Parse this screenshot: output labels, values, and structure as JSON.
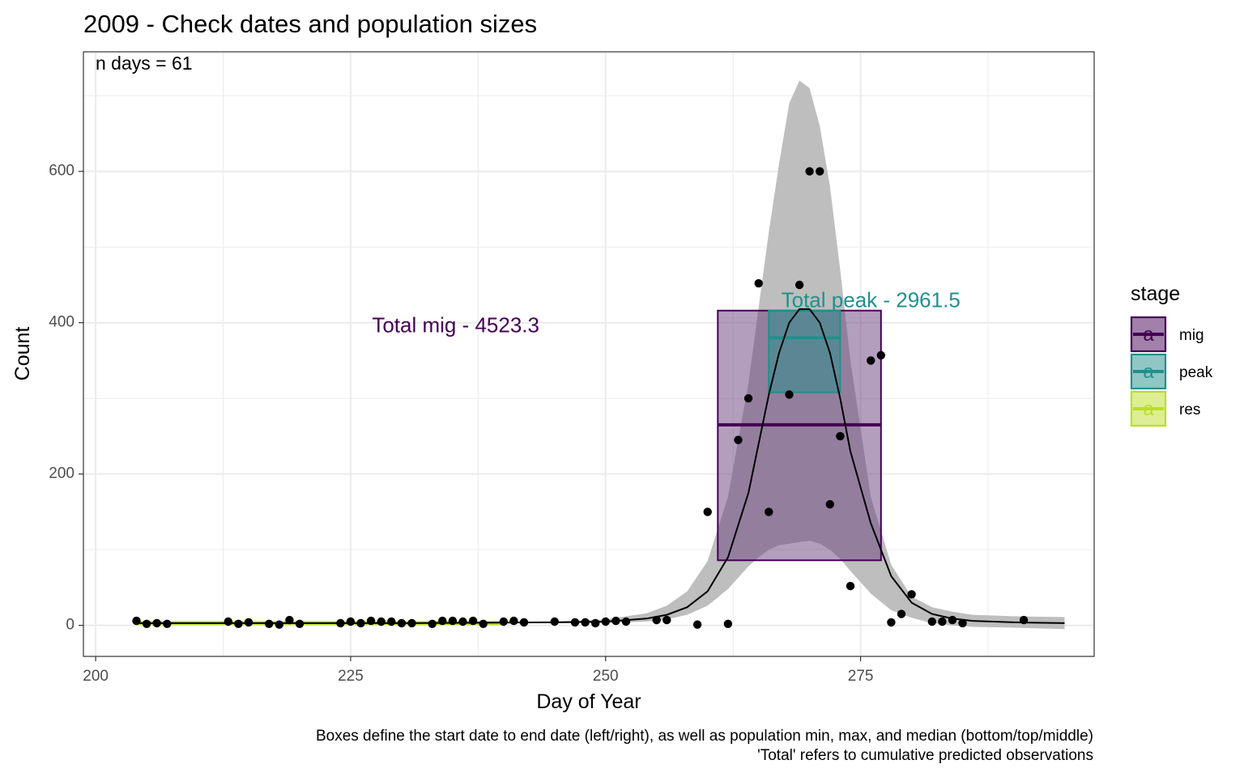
{
  "chart_data": {
    "type": "scatter",
    "title": "2009 - Check dates and population sizes",
    "xlabel": "Day of Year",
    "ylabel": "Count",
    "xlim": [
      198.8,
      297.9
    ],
    "ylim": [
      -41,
      758
    ],
    "x_ticks": [
      200,
      225,
      250,
      275
    ],
    "y_ticks": [
      0,
      200,
      400,
      600
    ],
    "x_minor": [
      212.5,
      237.5,
      262.5,
      287.5
    ],
    "y_minor": [
      100,
      300,
      500,
      700
    ],
    "grid": true,
    "annotation_top_left": "n days = 61",
    "caption_lines": [
      "Boxes define the start date to end date (left/right), as well as population min, max, and median (bottom/top/middle)",
      "'Total' refers to cumulative predicted observations"
    ],
    "legend": {
      "title": "stage",
      "position": "right",
      "entries": [
        {
          "key": "mig",
          "label": "mig",
          "color": "#440154"
        },
        {
          "key": "peak",
          "label": "peak",
          "color": "#21908C"
        },
        {
          "key": "res",
          "label": "res",
          "color": "#BADE28"
        }
      ],
      "glyph_letter": "a"
    },
    "boxes": [
      {
        "stage": "mig",
        "x_start": 261,
        "x_end": 277,
        "y_min": 86,
        "y_max": 416,
        "y_median": 265,
        "color": "#440154",
        "fill": "#6A3E7D",
        "fill_opacity": 0.5
      },
      {
        "stage": "peak",
        "x_start": 266,
        "x_end": 273,
        "y_min": 308,
        "y_max": 416,
        "y_median": 380,
        "color": "#21908C",
        "fill": "#21908C",
        "fill_opacity": 0.5
      }
    ],
    "resident_segment": {
      "stage": "res",
      "x_start": 204,
      "x_end": 240,
      "y": 3,
      "color": "#BADE28"
    },
    "labels": [
      {
        "text": "Total mig - 4523.3",
        "x": 235.3,
        "y": 395,
        "color": "#440154"
      },
      {
        "text": "Total peak - 2961.5",
        "x": 276.0,
        "y": 428,
        "color": "#21908C"
      }
    ],
    "fit_curve": {
      "x": [
        204,
        230,
        245,
        250,
        254,
        256,
        258,
        260,
        262,
        264,
        265,
        266,
        267,
        268,
        269,
        270,
        271,
        272,
        273,
        274,
        276,
        278,
        280,
        282,
        284,
        286,
        290,
        295
      ],
      "y": [
        3,
        3,
        4,
        5,
        9,
        14,
        24,
        45,
        90,
        175,
        240,
        305,
        360,
        400,
        418,
        418,
        400,
        360,
        300,
        230,
        135,
        65,
        30,
        15,
        9,
        6,
        4,
        3
      ],
      "lower": [
        3,
        3,
        3,
        3,
        5,
        8,
        14,
        26,
        48,
        78,
        90,
        100,
        106,
        108,
        110,
        112,
        108,
        100,
        88,
        72,
        42,
        20,
        10,
        3,
        0,
        -2,
        -3,
        -5
      ],
      "upper": [
        3,
        3,
        5,
        8,
        16,
        26,
        45,
        85,
        170,
        320,
        420,
        520,
        610,
        690,
        720,
        710,
        660,
        580,
        470,
        350,
        170,
        80,
        38,
        24,
        18,
        14,
        12,
        11
      ]
    },
    "points": [
      [
        204,
        6
      ],
      [
        205,
        2
      ],
      [
        206,
        3
      ],
      [
        207,
        2
      ],
      [
        213,
        5
      ],
      [
        214,
        2
      ],
      [
        215,
        4
      ],
      [
        217,
        2
      ],
      [
        218,
        1
      ],
      [
        219,
        7
      ],
      [
        220,
        2
      ],
      [
        224,
        3
      ],
      [
        225,
        5
      ],
      [
        226,
        3
      ],
      [
        227,
        6
      ],
      [
        228,
        5
      ],
      [
        229,
        5
      ],
      [
        230,
        3
      ],
      [
        231,
        3
      ],
      [
        233,
        2
      ],
      [
        234,
        6
      ],
      [
        235,
        6
      ],
      [
        236,
        5
      ],
      [
        237,
        6
      ],
      [
        238,
        2
      ],
      [
        240,
        5
      ],
      [
        241,
        6
      ],
      [
        242,
        4
      ],
      [
        245,
        5
      ],
      [
        247,
        4
      ],
      [
        248,
        4
      ],
      [
        249,
        3
      ],
      [
        250,
        5
      ],
      [
        251,
        6
      ],
      [
        252,
        5
      ],
      [
        255,
        7
      ],
      [
        256,
        7
      ],
      [
        259,
        1
      ],
      [
        260,
        150
      ],
      [
        262,
        2
      ],
      [
        263,
        245
      ],
      [
        264,
        300
      ],
      [
        265,
        452
      ],
      [
        266,
        150
      ],
      [
        268,
        305
      ],
      [
        269,
        450
      ],
      [
        270,
        600
      ],
      [
        271,
        600
      ],
      [
        272,
        160
      ],
      [
        273,
        250
      ],
      [
        274,
        52
      ],
      [
        276,
        350
      ],
      [
        277,
        357
      ],
      [
        278,
        4
      ],
      [
        279,
        15
      ],
      [
        280,
        41
      ],
      [
        282,
        5
      ],
      [
        283,
        5
      ],
      [
        284,
        7
      ],
      [
        285,
        3
      ],
      [
        291,
        7
      ]
    ]
  }
}
